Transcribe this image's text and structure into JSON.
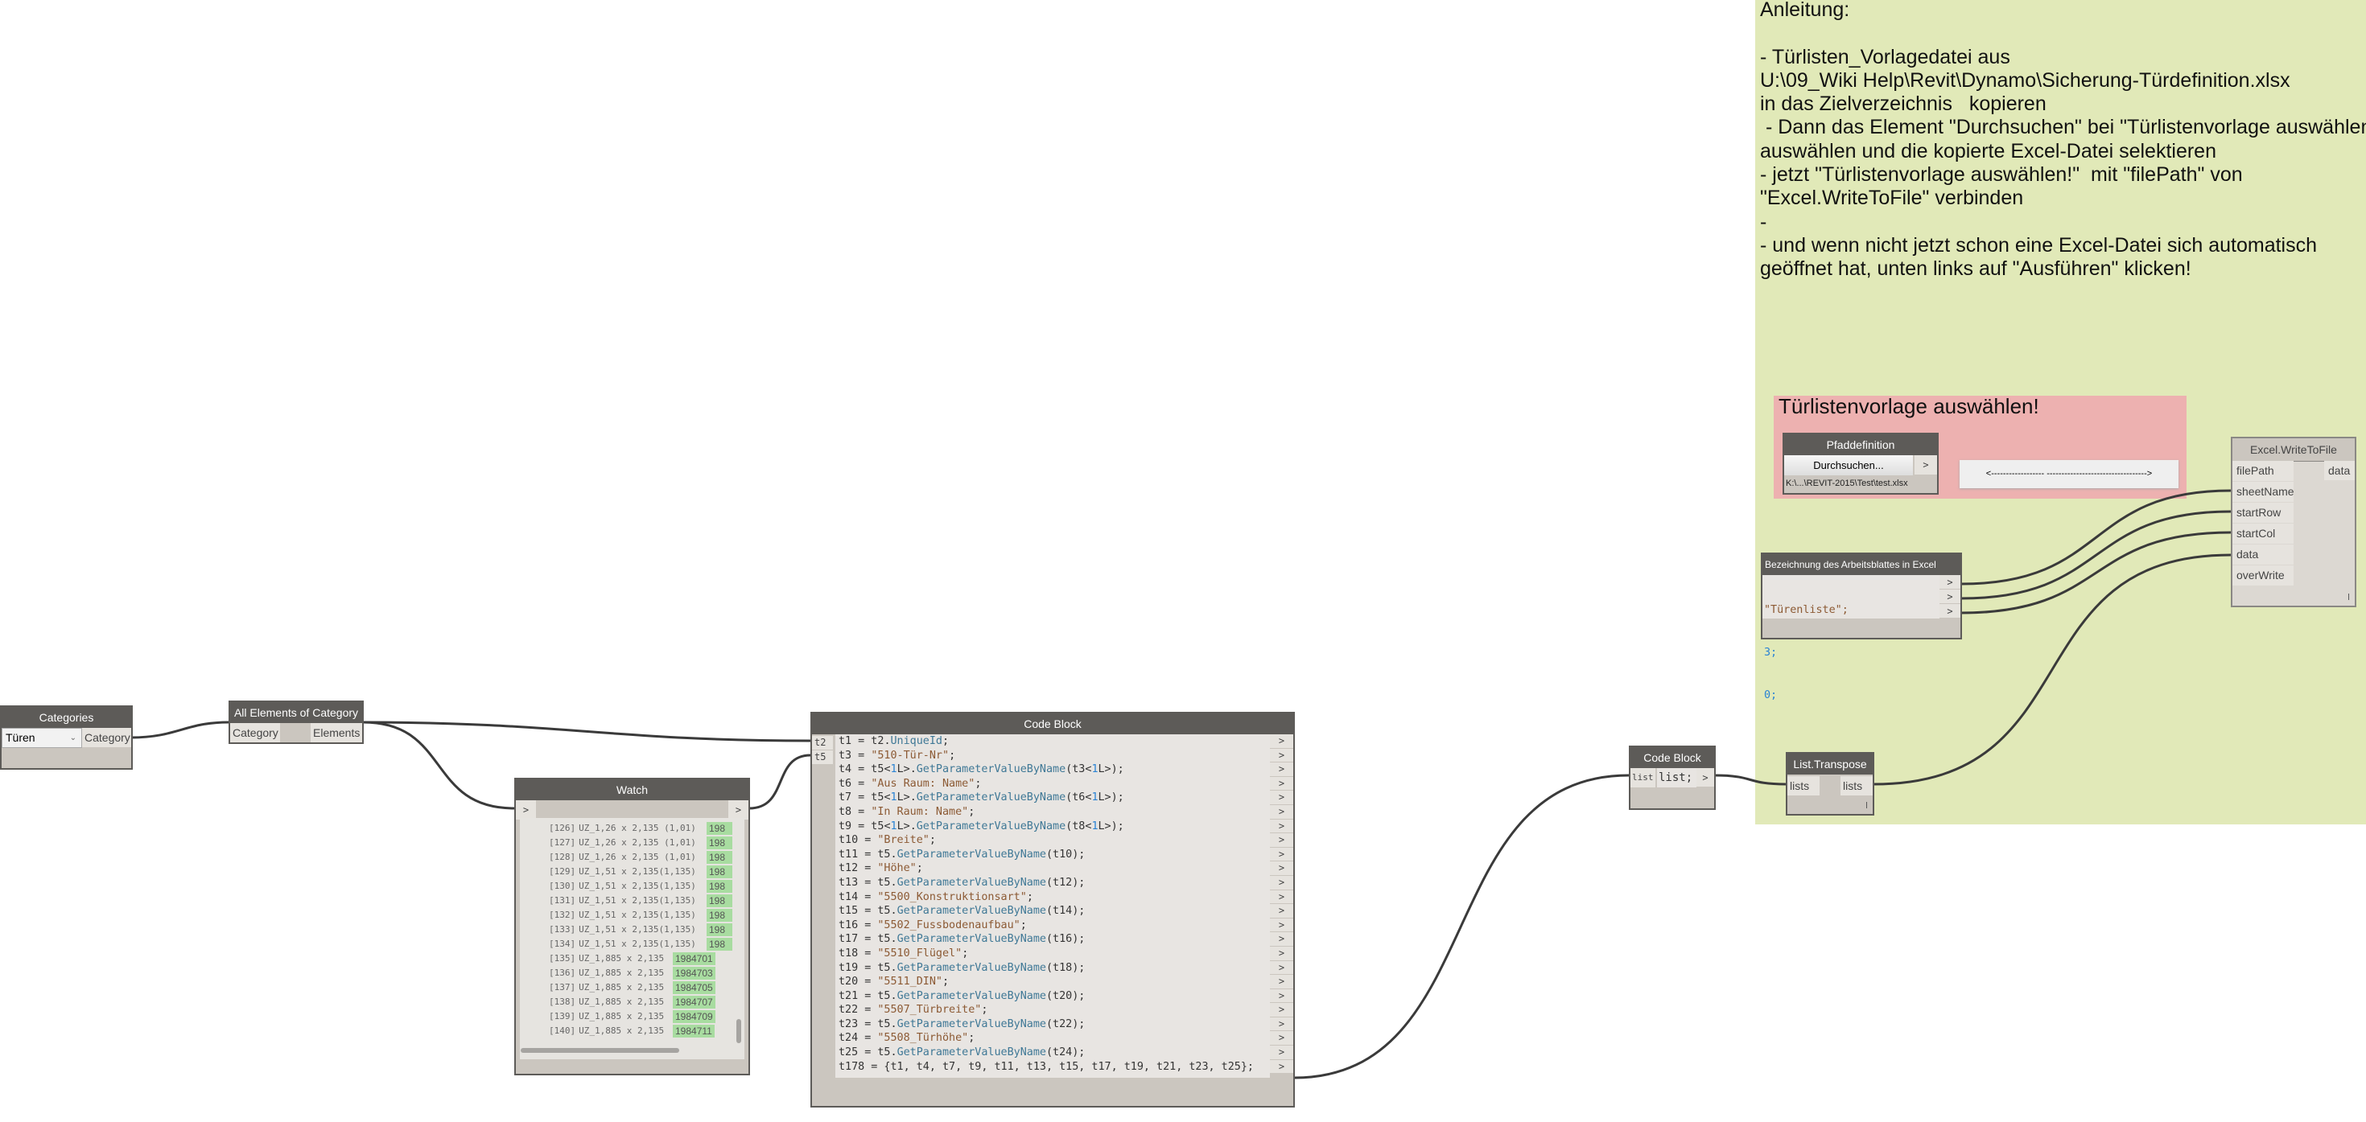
{
  "note": {
    "lines": [
      "Anleitung:",
      "",
      "- Türlisten_Vorlagedatei aus",
      "U:\\09_Wiki Help\\Revit\\Dynamo\\Sicherung-Türdefinition.xlsx",
      "in das Zielverzeichnis   kopieren",
      " - Dann das Element \"Durchsuchen\" bei \"Türlistenvorlage auswählen!\"",
      "auswählen und die kopierte Excel-Datei selektieren",
      "- jetzt \"Türlistenvorlage auswählen!\"  mit \"filePath\" von",
      "\"Excel.WriteToFile\" verbinden",
      "-",
      "- und wenn nicht jetzt schon eine Excel-Datei sich automatisch",
      "geöffnet hat, unten links auf \"Ausführen\" klicken!"
    ]
  },
  "colors": {
    "group_green": "#e1e9b8",
    "group_pink": "#edb1b0",
    "node_header": "#5d5b58",
    "node_body": "#cbc6bf",
    "watch_id_highlight": "#a8dca0"
  },
  "pink_group": {
    "title": "Türlistenvorlage auswählen!"
  },
  "categories_node": {
    "title": "Categories",
    "selected": "Türen",
    "output": "Category"
  },
  "all_elements_node": {
    "title": "All Elements of Category",
    "input": "Category",
    "output": "Elements"
  },
  "watch_node": {
    "title": "Watch",
    "input": ">",
    "output": ">",
    "rows": [
      {
        "index": "[126]",
        "label": "UZ_1,26 x 2,135 (1,01)",
        "id": "198"
      },
      {
        "index": "[127]",
        "label": "UZ_1,26 x 2,135 (1,01)",
        "id": "198"
      },
      {
        "index": "[128]",
        "label": "UZ_1,26 x 2,135 (1,01)",
        "id": "198"
      },
      {
        "index": "[129]",
        "label": "UZ_1,51 x 2,135(1,135)",
        "id": "198"
      },
      {
        "index": "[130]",
        "label": "UZ_1,51 x 2,135(1,135)",
        "id": "198"
      },
      {
        "index": "[131]",
        "label": "UZ_1,51 x 2,135(1,135)",
        "id": "198"
      },
      {
        "index": "[132]",
        "label": "UZ_1,51 x 2,135(1,135)",
        "id": "198"
      },
      {
        "index": "[133]",
        "label": "UZ_1,51 x 2,135(1,135)",
        "id": "198"
      },
      {
        "index": "[134]",
        "label": "UZ_1,51 x 2,135(1,135)",
        "id": "198"
      },
      {
        "index": "[135]",
        "label": "UZ_1,885 x 2,135",
        "id": "1984701"
      },
      {
        "index": "[136]",
        "label": "UZ_1,885 x 2,135",
        "id": "1984703"
      },
      {
        "index": "[137]",
        "label": "UZ_1,885 x 2,135",
        "id": "1984705"
      },
      {
        "index": "[138]",
        "label": "UZ_1,885 x 2,135",
        "id": "1984707"
      },
      {
        "index": "[139]",
        "label": "UZ_1,885 x 2,135",
        "id": "1984709"
      },
      {
        "index": "[140]",
        "label": "UZ_1,885 x 2,135",
        "id": "1984711"
      }
    ]
  },
  "code_block_main": {
    "title": "Code Block",
    "inputs": [
      "t2",
      "t5"
    ],
    "output_glyph": ">",
    "lines": [
      "t1 = t2.UniqueId;",
      "t3 = \"510-Tür-Nr\";",
      "t4 = t5<1L>.GetParameterValueByName(t3<1L>);",
      "t6 = \"Aus Raum: Name\";",
      "t7 = t5<1L>.GetParameterValueByName(t6<1L>);",
      "t8 = \"In Raum: Name\";",
      "t9 = t5<1L>.GetParameterValueByName(t8<1L>);",
      "t10 = \"Breite\";",
      "t11 = t5.GetParameterValueByName(t10);",
      "t12 = \"Höhe\";",
      "t13 = t5.GetParameterValueByName(t12);",
      "t14 = \"5500_Konstruktionsart\";",
      "t15 = t5.GetParameterValueByName(t14);",
      "t16 = \"5502_Fussbodenaufbau\";",
      "t17 = t5.GetParameterValueByName(t16);",
      "t18 = \"5510_Flügel\";",
      "t19 = t5.GetParameterValueByName(t18);",
      "t20 = \"5511_DIN\";",
      "t21 = t5.GetParameterValueByName(t20);",
      "t22 = \"5507_Türbreite\";",
      "t23 = t5.GetParameterValueByName(t22);",
      "t24 = \"5508_Türhöhe\";",
      "t25 = t5.GetParameterValueByName(t24);",
      "t178 = {t1, t4, t7, t9, t11, t13, t15, t17, t19, t21, t23, t25};"
    ]
  },
  "code_block_small": {
    "title": "Code Block",
    "input": "list",
    "code": "list;",
    "output": ">"
  },
  "list_transpose": {
    "title": "List.Transpose",
    "input": "lists",
    "output": "lists",
    "lacing": "l"
  },
  "pfad_node": {
    "title": "Pfaddefinition",
    "button": "Durchsuchen...",
    "output": ">",
    "path": "K:\\...\\REVIT-2015\\Test\\test.xlsx"
  },
  "arrow_note": {
    "text": "<------------------ ---------------------------------->"
  },
  "sheet_node": {
    "title": "Bezeichnung des Arbeitsblattes in Excel",
    "lines": [
      "\"Türenliste\";",
      "3;",
      "0;"
    ],
    "output": ">"
  },
  "excel_node": {
    "title": "Excel.WriteToFile",
    "inputs": [
      "filePath",
      "sheetName",
      "startRow",
      "startCol",
      "data",
      "overWrite"
    ],
    "output": "data",
    "lacing": "l"
  }
}
